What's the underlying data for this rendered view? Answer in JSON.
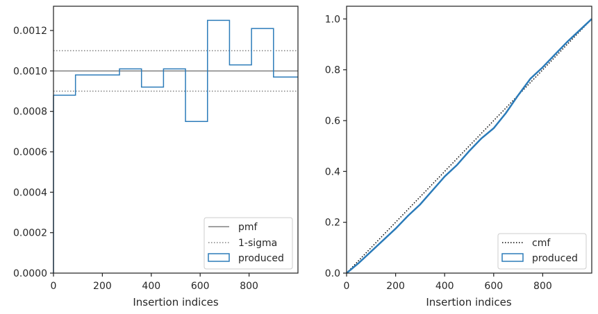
{
  "chart_data": [
    {
      "type": "histogram",
      "xlabel": "Insertion indices",
      "ylabel": "",
      "xlim": [
        0,
        1000
      ],
      "ylim": [
        0,
        0.00132
      ],
      "xticks": [
        0,
        200,
        400,
        600,
        800
      ],
      "xtick_labels": [
        "0",
        "200",
        "400",
        "600",
        "800"
      ],
      "yticks": [
        0,
        0.0002,
        0.0004,
        0.0006,
        0.0008,
        0.001,
        0.0012
      ],
      "ytick_labels": [
        "0.0000",
        "0.0002",
        "0.0004",
        "0.0006",
        "0.0008",
        "0.0010",
        "0.0012"
      ],
      "grid": false,
      "legend_position": "lower-right",
      "colors": {
        "hist": "#2b7bb9",
        "pmf": "#808080",
        "sigma": "#808080"
      },
      "reference_lines": [
        {
          "name": "pmf",
          "y": 0.001,
          "style": "solid"
        },
        {
          "name": "1-sigma",
          "y": 0.0011,
          "style": "dotted"
        },
        {
          "name": "1-sigma",
          "y": 0.0009,
          "style": "dotted"
        }
      ],
      "bin_edges": [
        0,
        90,
        180,
        270,
        360,
        450,
        540,
        630,
        720,
        810,
        900,
        1000
      ],
      "values": [
        0.00088,
        0.00098,
        0.00098,
        0.00101,
        0.00092,
        0.00101,
        0.00075,
        0.00125,
        0.00103,
        0.00121,
        0.00097
      ],
      "legend": [
        {
          "label": "pmf",
          "style": "solid"
        },
        {
          "label": "1-sigma",
          "style": "dotted"
        },
        {
          "label": "produced",
          "style": "box"
        }
      ]
    },
    {
      "type": "line",
      "xlabel": "Insertion indices",
      "ylabel": "",
      "xlim": [
        0,
        1000
      ],
      "ylim": [
        0,
        1.05
      ],
      "xticks": [
        0,
        200,
        400,
        600,
        800
      ],
      "xtick_labels": [
        "0",
        "200",
        "400",
        "600",
        "800"
      ],
      "yticks": [
        0,
        0.2,
        0.4,
        0.6,
        0.8,
        1.0
      ],
      "ytick_labels": [
        "0.0",
        "0.2",
        "0.4",
        "0.6",
        "0.8",
        "1.0"
      ],
      "grid": false,
      "legend_position": "lower-right",
      "colors": {
        "cmf": "#000000",
        "produced": "#2b7bb9"
      },
      "series": [
        {
          "name": "cmf",
          "style": "dotted",
          "x": [
            0,
            1000
          ],
          "y": [
            0,
            1
          ]
        },
        {
          "name": "produced",
          "style": "solid",
          "x": [
            0,
            50,
            100,
            150,
            200,
            250,
            300,
            350,
            400,
            450,
            500,
            550,
            600,
            650,
            700,
            750,
            800,
            850,
            900,
            950,
            1000
          ],
          "y": [
            0,
            0.04,
            0.085,
            0.13,
            0.175,
            0.225,
            0.27,
            0.325,
            0.38,
            0.425,
            0.48,
            0.53,
            0.57,
            0.63,
            0.7,
            0.765,
            0.81,
            0.86,
            0.91,
            0.955,
            1.0
          ]
        }
      ],
      "legend": [
        {
          "label": "cmf",
          "style": "dotted"
        },
        {
          "label": "produced",
          "style": "box"
        }
      ]
    }
  ]
}
